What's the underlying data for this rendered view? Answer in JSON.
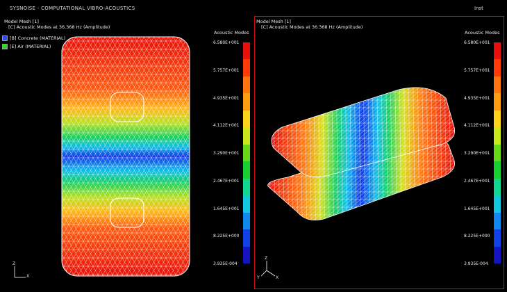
{
  "app": {
    "title": "SYSNOISE - COMPUTATIONAL VIBRO-ACOUSTICS",
    "tag": "Inst"
  },
  "viewports": [
    {
      "line1": "Model Mesh [1]",
      "line2": "[C]  Acoustic Modes at 36.368 Hz (Amplitude)",
      "colorbar_title": "Acoustic Modes",
      "axis": {
        "x": "X",
        "y": "Z"
      }
    },
    {
      "line1": "Model Mesh [1]",
      "line2": "[C]  Acoustic Modes at 36.368 Hz (Amplitude)",
      "colorbar_title": "Acoustic Modes",
      "axis": {
        "x": "X",
        "y": "Z",
        "z": "Y"
      }
    }
  ],
  "materials": [
    {
      "label": "[B] Concrete (MATERIAL)",
      "color": "#2b4bff"
    },
    {
      "label": "[E] Air (MATERIAL)",
      "color": "#22dd22"
    }
  ],
  "colorbar_ticks": [
    "6.580E+001",
    "5.757E+001",
    "4.935E+001",
    "4.112E+001",
    "3.290E+001",
    "2.467E+001",
    "1.645E+001",
    "8.225E+000",
    "3.935E-004"
  ],
  "colorbar_colors": [
    "#e8100a",
    "#ff3a08",
    "#ff7410",
    "#ff9d12",
    "#ffd418",
    "#c8e81a",
    "#66d818",
    "#18d030",
    "#10d890",
    "#10c8e0",
    "#1088f0",
    "#1040e8",
    "#1414c0"
  ]
}
